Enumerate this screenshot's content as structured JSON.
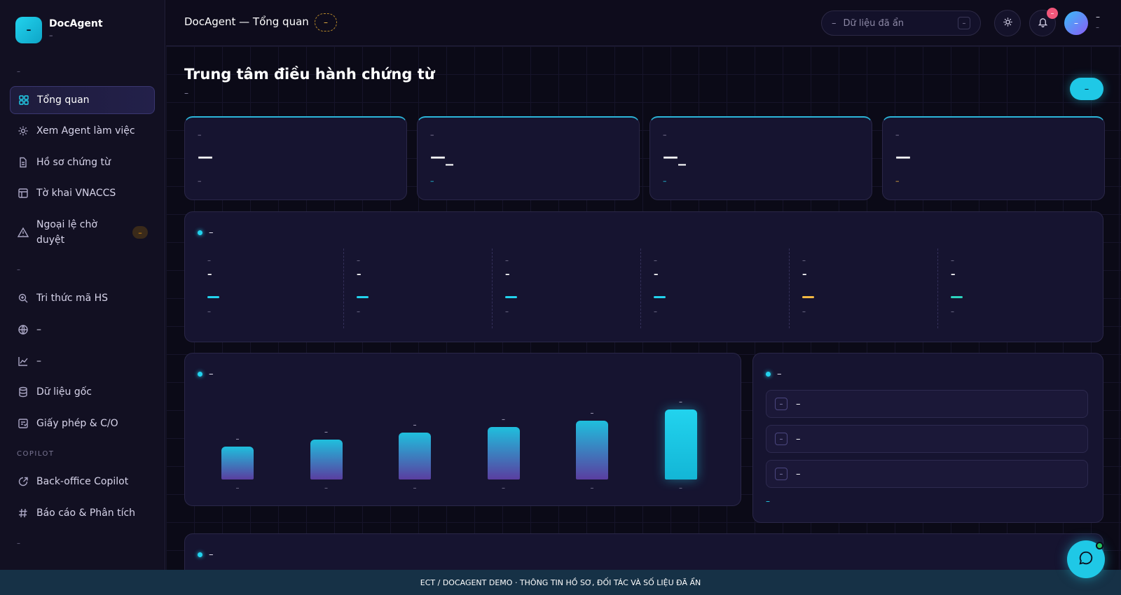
{
  "brand": {
    "name": "DocAgent",
    "sub": "–",
    "logo_glyph": "–"
  },
  "sidebar": {
    "section1_label": "–",
    "section2_label": "–",
    "section3_label": "COPILOT",
    "section4_label": "–",
    "items": [
      {
        "label": "Tổng quan",
        "icon": "grid-icon"
      },
      {
        "label": "Xem Agent làm việc",
        "icon": "sparkle-icon"
      },
      {
        "label": "Hồ sơ chứng từ",
        "icon": "file-icon"
      },
      {
        "label": "Tờ khai VNACCS",
        "icon": "form-icon"
      },
      {
        "label": "Ngoại lệ chờ duyệt",
        "icon": "warning-icon",
        "badge": "–"
      },
      {
        "label": "Tri thức mã HS",
        "icon": "search-doc-icon"
      },
      {
        "label": "–",
        "icon": "globe-icon"
      },
      {
        "label": "–",
        "icon": "trend-icon"
      },
      {
        "label": "Dữ liệu gốc",
        "icon": "database-icon"
      },
      {
        "label": "Giấy phép & C/O",
        "icon": "license-icon"
      },
      {
        "label": "Back-office Copilot",
        "icon": "copilot-icon"
      },
      {
        "label": "Báo cáo & Phân tích",
        "icon": "hash-icon"
      }
    ]
  },
  "topbar": {
    "breadcrumb": "DocAgent — Tổng quan",
    "status_pill": "–",
    "search_prefix": "–",
    "search_placeholder": "Dữ liệu đã ẩn",
    "search_kbd": "–",
    "notification_count": "–",
    "avatar_initial": "–",
    "user_name": "–",
    "user_role": "–"
  },
  "page": {
    "title": "Trung tâm điều hành chứng từ",
    "subtitle": "–",
    "primary_action": "–"
  },
  "stats": [
    {
      "label": "–",
      "value": "—",
      "delta": "–",
      "delta_color": "#8d89a6"
    },
    {
      "label": "–",
      "value": "—_",
      "delta": "–",
      "delta_color": "#22d3ee"
    },
    {
      "label": "–",
      "value": "—_",
      "delta": "–",
      "delta_color": "#22d3ee"
    },
    {
      "label": "–",
      "value": "—",
      "delta": "–",
      "delta_color": "#f5b942"
    }
  ],
  "pipeline": {
    "title": "–",
    "metrics": [
      {
        "label": "–",
        "value": "–",
        "color": "#22d3ee",
        "foot": "–"
      },
      {
        "label": "–",
        "value": "–",
        "color": "#22d3ee",
        "foot": "–"
      },
      {
        "label": "–",
        "value": "–",
        "color": "#22d3ee",
        "foot": "–"
      },
      {
        "label": "–",
        "value": "–",
        "color": "#22d3ee",
        "foot": "–"
      },
      {
        "label": "–",
        "value": "–",
        "color": "#f5b942",
        "foot": "–"
      },
      {
        "label": "–",
        "value": "–",
        "color": "#2dd4bf",
        "foot": "–"
      }
    ]
  },
  "chart_panel": {
    "title": "–",
    "chart_data": {
      "type": "bar",
      "categories": [
        "–",
        "–",
        "–",
        "–",
        "–",
        "–"
      ],
      "values": [
        47,
        57,
        67,
        75,
        84,
        100
      ],
      "value_labels": [
        "–",
        "–",
        "–",
        "–",
        "–",
        "–"
      ],
      "title": "",
      "xlabel": "",
      "ylabel": "",
      "ylim": [
        0,
        100
      ],
      "grid": false
    }
  },
  "alerts_panel": {
    "title": "–",
    "rows": [
      {
        "tag": "–",
        "text": "–"
      },
      {
        "tag": "–",
        "text": "–"
      },
      {
        "tag": "–",
        "text": "–"
      }
    ],
    "footer_link": "–"
  },
  "bottom_panel": {
    "title": "–"
  },
  "banner": {
    "text": "ECT / DOCAGENT DEMO · THÔNG TIN HỒ SƠ, ĐỐI TÁC VÀ SỐ LIỆU ĐÃ ẨN"
  },
  "colors": {
    "accent": "#22d3ee",
    "warning": "#f5b942",
    "success": "#2dd4bf",
    "danger": "#f0567a"
  }
}
